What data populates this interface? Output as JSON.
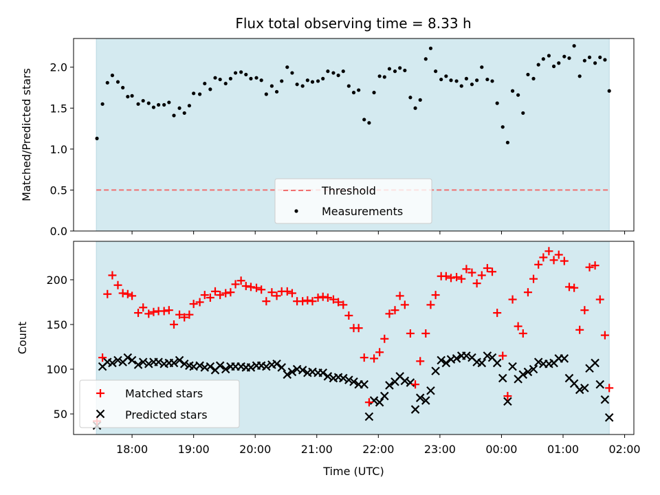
{
  "figure": {
    "title": "Flux total observing time = 8.33 h"
  },
  "chart_data": [
    {
      "type": "scatter",
      "panel": "top",
      "ylabel": "Matched/Predicted stars",
      "xlabel": "",
      "ylim": [
        0.0,
        2.35
      ],
      "y_ticks": [
        0.0,
        0.5,
        1.0,
        1.5,
        2.0
      ],
      "y_tick_labels": [
        "0.0",
        "0.5",
        "1.0",
        "1.5",
        "2.0"
      ],
      "xlim_hours": [
        17.05,
        26.15
      ],
      "observing_window_hours": [
        17.42,
        25.75
      ],
      "shaded_color": "#d4eaf0",
      "threshold": 0.5,
      "threshold_color": "#f07070",
      "marker_color": "#000000",
      "legend_position": "lower center",
      "legend": [
        {
          "label": "Threshold",
          "symbol": "dashed-line"
        },
        {
          "label": "Measurements",
          "symbol": "dot"
        }
      ],
      "series": [
        {
          "name": "Measurements",
          "x_hours": [
            17.43,
            17.52,
            17.6,
            17.68,
            17.77,
            17.85,
            17.93,
            18.0,
            18.1,
            18.18,
            18.27,
            18.35,
            18.43,
            18.52,
            18.6,
            18.68,
            18.77,
            18.85,
            18.93,
            19.0,
            19.1,
            19.18,
            19.27,
            19.35,
            19.43,
            19.52,
            19.6,
            19.68,
            19.77,
            19.85,
            19.93,
            20.02,
            20.1,
            20.18,
            20.27,
            20.35,
            20.43,
            20.52,
            20.6,
            20.68,
            20.77,
            20.85,
            20.93,
            21.02,
            21.1,
            21.18,
            21.27,
            21.35,
            21.43,
            21.52,
            21.6,
            21.68,
            21.77,
            21.85,
            21.93,
            22.02,
            22.1,
            22.18,
            22.27,
            22.35,
            22.43,
            22.52,
            22.6,
            22.68,
            22.77,
            22.85,
            22.93,
            23.02,
            23.1,
            23.18,
            23.27,
            23.35,
            23.43,
            23.52,
            23.6,
            23.68,
            23.77,
            23.85,
            23.93,
            24.02,
            24.1,
            24.18,
            24.27,
            24.35,
            24.43,
            24.52,
            24.6,
            24.68,
            24.77,
            24.85,
            24.93,
            25.02,
            25.1,
            25.18,
            25.27,
            25.35,
            25.43,
            25.52,
            25.6,
            25.68,
            25.75
          ],
          "y": [
            1.13,
            1.55,
            1.81,
            1.9,
            1.82,
            1.75,
            1.64,
            1.65,
            1.55,
            1.59,
            1.56,
            1.51,
            1.54,
            1.54,
            1.57,
            1.41,
            1.5,
            1.44,
            1.53,
            1.68,
            1.67,
            1.8,
            1.73,
            1.87,
            1.85,
            1.8,
            1.86,
            1.93,
            1.94,
            1.91,
            1.86,
            1.87,
            1.84,
            1.67,
            1.77,
            1.7,
            1.83,
            2.0,
            1.93,
            1.79,
            1.77,
            1.84,
            1.82,
            1.83,
            1.86,
            1.95,
            1.93,
            1.9,
            1.95,
            1.77,
            1.69,
            1.72,
            1.36,
            1.32,
            1.69,
            1.89,
            1.88,
            1.98,
            1.95,
            1.99,
            1.96,
            1.63,
            1.5,
            1.6,
            2.1,
            2.23,
            1.95,
            1.85,
            1.89,
            1.84,
            1.83,
            1.77,
            1.86,
            1.79,
            1.84,
            2.0,
            1.85,
            1.83,
            1.56,
            1.27,
            1.08,
            1.71,
            1.66,
            1.44,
            1.91,
            1.86,
            2.03,
            2.1,
            2.14,
            2.01,
            2.05,
            2.13,
            2.11,
            2.26,
            1.89,
            2.08,
            2.12,
            2.05,
            2.12,
            2.09,
            1.71
          ]
        }
      ]
    },
    {
      "type": "scatter",
      "panel": "bottom",
      "ylabel": "Count",
      "xlabel": "Time (UTC)",
      "ylim": [
        27,
        243
      ],
      "y_ticks": [
        50,
        100,
        150,
        200
      ],
      "y_tick_labels": [
        "50",
        "100",
        "150",
        "200"
      ],
      "xlim_hours": [
        17.05,
        26.15
      ],
      "x_ticks_hours": [
        18,
        19,
        20,
        21,
        22,
        23,
        24,
        25,
        26
      ],
      "x_tick_labels": [
        "18:00",
        "19:00",
        "20:00",
        "21:00",
        "22:00",
        "23:00",
        "00:00",
        "01:00",
        "02:00"
      ],
      "observing_window_hours": [
        17.42,
        25.75
      ],
      "shaded_color": "#d4eaf0",
      "legend_position": "lower left",
      "legend": [
        {
          "label": "Matched stars",
          "symbol": "plus",
          "color": "#ff0000"
        },
        {
          "label": "Predicted stars",
          "symbol": "cross",
          "color": "#000000"
        }
      ],
      "series": [
        {
          "name": "Matched stars",
          "color": "#ff0000",
          "marker": "+",
          "x_hours": [
            17.43,
            17.52,
            17.6,
            17.68,
            17.77,
            17.85,
            17.93,
            18.0,
            18.1,
            18.18,
            18.27,
            18.35,
            18.43,
            18.52,
            18.6,
            18.68,
            18.77,
            18.85,
            18.93,
            19.0,
            19.1,
            19.18,
            19.27,
            19.35,
            19.43,
            19.52,
            19.6,
            19.68,
            19.77,
            19.85,
            19.93,
            20.02,
            20.1,
            20.18,
            20.27,
            20.35,
            20.43,
            20.52,
            20.6,
            20.68,
            20.77,
            20.85,
            20.93,
            21.02,
            21.1,
            21.18,
            21.27,
            21.35,
            21.43,
            21.52,
            21.6,
            21.68,
            21.77,
            21.85,
            21.93,
            22.02,
            22.1,
            22.18,
            22.27,
            22.35,
            22.43,
            22.52,
            22.6,
            22.68,
            22.77,
            22.85,
            22.93,
            23.02,
            23.1,
            23.18,
            23.27,
            23.35,
            23.43,
            23.52,
            23.6,
            23.68,
            23.77,
            23.85,
            23.93,
            24.02,
            24.1,
            24.18,
            24.27,
            24.35,
            24.43,
            24.52,
            24.6,
            24.68,
            24.77,
            24.85,
            24.93,
            25.02,
            25.1,
            25.18,
            25.27,
            25.35,
            25.43,
            25.52,
            25.6,
            25.68,
            25.75
          ],
          "y": [
            42,
            113,
            184,
            205,
            194,
            185,
            184,
            182,
            163,
            169,
            162,
            164,
            165,
            165,
            166,
            150,
            161,
            158,
            161,
            173,
            175,
            183,
            180,
            187,
            183,
            185,
            186,
            195,
            199,
            193,
            192,
            191,
            189,
            176,
            186,
            182,
            187,
            187,
            185,
            176,
            176,
            177,
            176,
            180,
            181,
            180,
            178,
            175,
            172,
            160,
            146,
            146,
            113,
            63,
            112,
            119,
            134,
            162,
            166,
            182,
            172,
            140,
            83,
            109,
            140,
            172,
            183,
            204,
            204,
            202,
            203,
            201,
            212,
            208,
            196,
            205,
            213,
            209,
            163,
            115,
            70,
            178,
            148,
            140,
            186,
            201,
            217,
            225,
            232,
            222,
            228,
            221,
            192,
            191,
            144,
            166,
            214,
            216,
            178,
            138,
            79
          ]
        },
        {
          "name": "Predicted stars",
          "color": "#000000",
          "marker": "x",
          "x_hours": [
            17.43,
            17.52,
            17.6,
            17.68,
            17.77,
            17.85,
            17.93,
            18.0,
            18.1,
            18.18,
            18.27,
            18.35,
            18.43,
            18.52,
            18.6,
            18.68,
            18.77,
            18.85,
            18.93,
            19.0,
            19.1,
            19.18,
            19.27,
            19.35,
            19.43,
            19.52,
            19.6,
            19.68,
            19.77,
            19.85,
            19.93,
            20.02,
            20.1,
            20.18,
            20.27,
            20.35,
            20.43,
            20.52,
            20.6,
            20.68,
            20.77,
            20.85,
            20.93,
            21.02,
            21.1,
            21.18,
            21.27,
            21.35,
            21.43,
            21.52,
            21.6,
            21.68,
            21.77,
            21.85,
            21.93,
            22.02,
            22.1,
            22.18,
            22.27,
            22.35,
            22.43,
            22.52,
            22.6,
            22.68,
            22.77,
            22.85,
            22.93,
            23.02,
            23.1,
            23.18,
            23.27,
            23.35,
            23.43,
            23.52,
            23.6,
            23.68,
            23.77,
            23.85,
            23.93,
            24.02,
            24.1,
            24.18,
            24.27,
            24.35,
            24.43,
            24.52,
            24.6,
            24.68,
            24.77,
            24.85,
            24.93,
            25.02,
            25.1,
            25.18,
            25.27,
            25.35,
            25.43,
            25.52,
            25.6,
            25.68,
            25.75
          ],
          "y": [
            37,
            103,
            108,
            107,
            110,
            108,
            113,
            110,
            105,
            108,
            106,
            108,
            108,
            106,
            107,
            107,
            110,
            106,
            104,
            103,
            104,
            102,
            103,
            99,
            104,
            100,
            103,
            103,
            103,
            102,
            102,
            104,
            104,
            103,
            105,
            106,
            102,
            94,
            97,
            100,
            99,
            96,
            97,
            96,
            96,
            92,
            90,
            91,
            90,
            88,
            86,
            83,
            83,
            47,
            65,
            63,
            70,
            82,
            86,
            92,
            87,
            85,
            55,
            68,
            65,
            76,
            98,
            110,
            107,
            111,
            112,
            115,
            115,
            113,
            108,
            107,
            115,
            113,
            107,
            90,
            64,
            103,
            89,
            94,
            97,
            100,
            108,
            106,
            106,
            107,
            112,
            112,
            90,
            84,
            77,
            79,
            101,
            107,
            83,
            66,
            46
          ]
        }
      ]
    }
  ]
}
